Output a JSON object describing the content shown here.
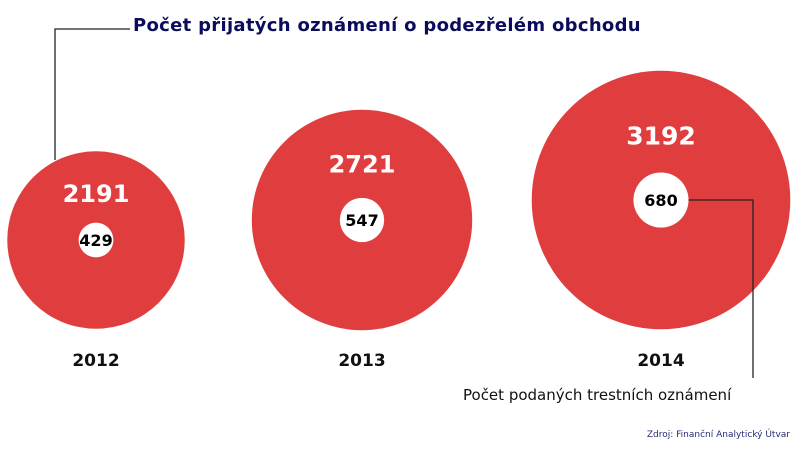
{
  "chart_data": {
    "type": "bubble",
    "title": "Počet přijatých oznámení o podezřelém obchodu",
    "inner_series_label": "Počet podaných trestních oznámení",
    "source": "Zdroj: Finanční Analytický Útvar",
    "categories": [
      "2012",
      "2013",
      "2014"
    ],
    "series": [
      {
        "name": "Počet přijatých oznámení o podezřelém obchodu",
        "values": [
          2191,
          2721,
          3192
        ],
        "color": "#e03e3e"
      },
      {
        "name": "Počet podaných trestních oznámení",
        "values": [
          429,
          547,
          680
        ],
        "color": "#ffffff"
      }
    ]
  }
}
